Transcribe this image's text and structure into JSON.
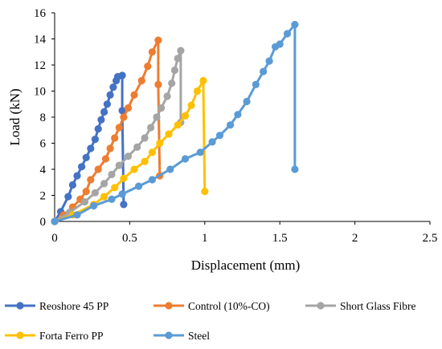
{
  "chart_data": {
    "type": "line",
    "title": "",
    "xlabel": "Displacement (mm)",
    "ylabel": "Load (kN)",
    "xlim": [
      0,
      2.5
    ],
    "ylim": [
      0,
      16
    ],
    "x_ticks": [
      "0",
      "0.5",
      "1",
      "1.5",
      "2",
      "2.5"
    ],
    "y_ticks": [
      "0",
      "2",
      "4",
      "6",
      "8",
      "10",
      "12",
      "14",
      "16"
    ],
    "grid": false,
    "legend_position": "bottom",
    "series": [
      {
        "name": "Reoshore 45 PP",
        "color": "#4472C4",
        "points": [
          [
            0,
            0
          ],
          [
            0.04,
            0.75
          ],
          [
            0.09,
            1.9
          ],
          [
            0.12,
            2.8
          ],
          [
            0.15,
            3.5
          ],
          [
            0.18,
            4.2
          ],
          [
            0.21,
            4.9
          ],
          [
            0.24,
            5.6
          ],
          [
            0.27,
            6.3
          ],
          [
            0.29,
            7.1
          ],
          [
            0.31,
            7.8
          ],
          [
            0.33,
            8.4
          ],
          [
            0.35,
            9.0
          ],
          [
            0.37,
            9.7
          ],
          [
            0.39,
            10.3
          ],
          [
            0.41,
            10.8
          ],
          [
            0.42,
            11.1
          ],
          [
            0.45,
            11.2
          ],
          [
            0.45,
            8.5
          ],
          [
            0.46,
            1.3
          ]
        ]
      },
      {
        "name": "Control (10%-CO)",
        "color": "#ED7D31",
        "points": [
          [
            0,
            0
          ],
          [
            0.06,
            0.5
          ],
          [
            0.12,
            1.1
          ],
          [
            0.17,
            1.7
          ],
          [
            0.21,
            2.3
          ],
          [
            0.24,
            3.2
          ],
          [
            0.29,
            4.0
          ],
          [
            0.34,
            4.8
          ],
          [
            0.37,
            5.6
          ],
          [
            0.4,
            6.4
          ],
          [
            0.43,
            7.2
          ],
          [
            0.46,
            8.0
          ],
          [
            0.49,
            8.7
          ],
          [
            0.53,
            9.7
          ],
          [
            0.58,
            10.8
          ],
          [
            0.62,
            11.9
          ],
          [
            0.65,
            13.0
          ],
          [
            0.69,
            13.9
          ],
          [
            0.69,
            10.5
          ],
          [
            0.7,
            3.5
          ]
        ]
      },
      {
        "name": "Short Glass Fibre",
        "color": "#A5A5A5",
        "points": [
          [
            0,
            0
          ],
          [
            0.1,
            0.7
          ],
          [
            0.2,
            1.5
          ],
          [
            0.27,
            2.2
          ],
          [
            0.33,
            2.9
          ],
          [
            0.38,
            3.6
          ],
          [
            0.43,
            4.3
          ],
          [
            0.49,
            5.0
          ],
          [
            0.55,
            5.7
          ],
          [
            0.6,
            6.4
          ],
          [
            0.64,
            7.2
          ],
          [
            0.68,
            8.0
          ],
          [
            0.71,
            8.7
          ],
          [
            0.75,
            9.6
          ],
          [
            0.78,
            10.6
          ],
          [
            0.8,
            11.6
          ],
          [
            0.82,
            12.5
          ],
          [
            0.84,
            13.1
          ],
          [
            0.84,
            7.6
          ]
        ]
      },
      {
        "name": "Forta Ferro PP",
        "color": "#FFC000",
        "points": [
          [
            0,
            0
          ],
          [
            0.12,
            0.5
          ],
          [
            0.26,
            1.3
          ],
          [
            0.33,
            1.9
          ],
          [
            0.4,
            2.6
          ],
          [
            0.46,
            3.3
          ],
          [
            0.53,
            4.0
          ],
          [
            0.6,
            4.6
          ],
          [
            0.65,
            5.3
          ],
          [
            0.7,
            6.0
          ],
          [
            0.76,
            6.7
          ],
          [
            0.82,
            7.4
          ],
          [
            0.87,
            8.1
          ],
          [
            0.91,
            8.9
          ],
          [
            0.95,
            10.0
          ],
          [
            0.99,
            10.8
          ],
          [
            1.0,
            2.3
          ]
        ]
      },
      {
        "name": "Steel",
        "color": "#5B9BD5",
        "points": [
          [
            0,
            0
          ],
          [
            0.15,
            0.5
          ],
          [
            0.26,
            1.2
          ],
          [
            0.38,
            1.7
          ],
          [
            0.45,
            2.1
          ],
          [
            0.56,
            2.7
          ],
          [
            0.65,
            3.2
          ],
          [
            0.77,
            4.0
          ],
          [
            0.87,
            4.8
          ],
          [
            0.97,
            5.3
          ],
          [
            1.05,
            6.1
          ],
          [
            1.1,
            6.6
          ],
          [
            1.17,
            7.4
          ],
          [
            1.22,
            8.2
          ],
          [
            1.28,
            9.2
          ],
          [
            1.34,
            10.5
          ],
          [
            1.39,
            11.5
          ],
          [
            1.43,
            12.3
          ],
          [
            1.47,
            13.4
          ],
          [
            1.5,
            13.6
          ],
          [
            1.55,
            14.4
          ],
          [
            1.6,
            15.1
          ],
          [
            1.6,
            4.0
          ]
        ]
      }
    ]
  }
}
